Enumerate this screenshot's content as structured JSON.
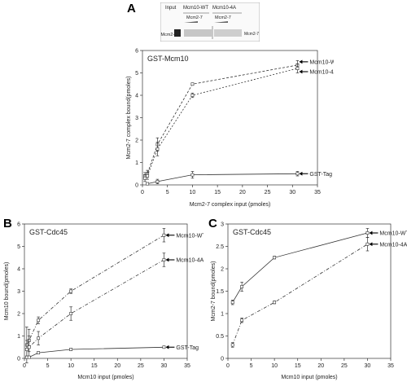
{
  "panels": {
    "a": "A",
    "b": "B",
    "c": "C"
  },
  "blot": {
    "lane_input": "Input",
    "lane_wt": "Mcm10-WT",
    "lane_4a": "Mcm10-4A",
    "sub_wt": "Mcm2-7",
    "sub_4a": "Mcm2-7",
    "left_label": "Mcm2-7",
    "right_label": "Mcm2-7"
  },
  "chart_data": [
    {
      "type": "line",
      "panel": "A",
      "title": "GST-Mcm10",
      "xlabel": "Mcm2-7 complex input (pmoles)",
      "ylabel": "Mcm2-7 complex bound(pmoles)",
      "xlim": [
        0,
        35
      ],
      "ylim": [
        0,
        6
      ],
      "xticks": [
        "0",
        "5",
        "10",
        "15",
        "20",
        "25",
        "30",
        "35"
      ],
      "yticks": [
        "0",
        "1",
        "2",
        "3",
        "4",
        "5",
        "6"
      ],
      "series": [
        {
          "name": "Mcm10-WT",
          "x": [
            0.5,
            1,
            3,
            10,
            31
          ],
          "y": [
            0.4,
            0.5,
            1.8,
            4.5,
            5.35
          ],
          "err": [
            0.15,
            0.15,
            0.3,
            0.05,
            0.2
          ]
        },
        {
          "name": "Mcm10-4A",
          "x": [
            0.5,
            1,
            3,
            10,
            31
          ],
          "y": [
            0.3,
            0.4,
            1.6,
            4.0,
            5.2
          ],
          "err": [
            0.15,
            0.15,
            0.3,
            0.1,
            0.2
          ]
        },
        {
          "name": "GST-Tag",
          "x": [
            1,
            3,
            10,
            31
          ],
          "y": [
            0.05,
            0.15,
            0.45,
            0.5
          ],
          "err": [
            0.05,
            0.1,
            0.15,
            0.1
          ]
        }
      ]
    },
    {
      "type": "line",
      "panel": "B",
      "title": "GST-Cdc45",
      "xlabel": "Mcm10 input (pmoles)",
      "ylabel": "Mcm10 bound(pmoles)",
      "xlim": [
        0,
        35
      ],
      "ylim": [
        0,
        6
      ],
      "xticks": [
        "0",
        "5",
        "10",
        "15",
        "20",
        "25",
        "30",
        "35"
      ],
      "yticks": [
        "0",
        "1",
        "2",
        "3",
        "4",
        "5",
        "6"
      ],
      "series": [
        {
          "name": "Mcm10-WT",
          "x": [
            0.5,
            1,
            3,
            10,
            30
          ],
          "y": [
            0.6,
            0.8,
            1.7,
            3.0,
            5.5
          ],
          "err": [
            0.8,
            0.5,
            0.15,
            0.1,
            0.3
          ]
        },
        {
          "name": "Mcm10-4A",
          "x": [
            0.5,
            1,
            3,
            10,
            30
          ],
          "y": [
            0.4,
            0.5,
            0.9,
            2.0,
            4.4
          ],
          "err": [
            0.4,
            0.5,
            0.3,
            0.3,
            0.3
          ]
        },
        {
          "name": "GST-Tag",
          "x": [
            0.5,
            1,
            3,
            10,
            30
          ],
          "y": [
            0.05,
            0.05,
            0.25,
            0.4,
            0.5
          ],
          "err": [
            0.05,
            0.05,
            0.05,
            0.05,
            0.05
          ]
        }
      ]
    },
    {
      "type": "line",
      "panel": "C",
      "title": "GST-Cdc45",
      "xlabel": "Mcm10 input (pmoles)",
      "ylabel": "Mcm2-7 bound(pmoles)",
      "xlim": [
        0,
        35
      ],
      "ylim": [
        0,
        3
      ],
      "xticks": [
        "0",
        "5",
        "10",
        "15",
        "20",
        "25",
        "30",
        "35"
      ],
      "yticks": [
        "0",
        "0.5",
        "1",
        "1.5",
        "2",
        "2.5",
        "3"
      ],
      "series": [
        {
          "name": "Mcm10-WT",
          "x": [
            1,
            3,
            10,
            30
          ],
          "y": [
            1.25,
            1.6,
            2.25,
            2.8
          ],
          "err": [
            0.05,
            0.1,
            0.03,
            0.1
          ]
        },
        {
          "name": "Mcm10-4A",
          "x": [
            1,
            3,
            10,
            30
          ],
          "y": [
            0.3,
            0.85,
            1.25,
            2.55
          ],
          "err": [
            0.05,
            0.05,
            0.03,
            0.15
          ]
        }
      ]
    }
  ]
}
